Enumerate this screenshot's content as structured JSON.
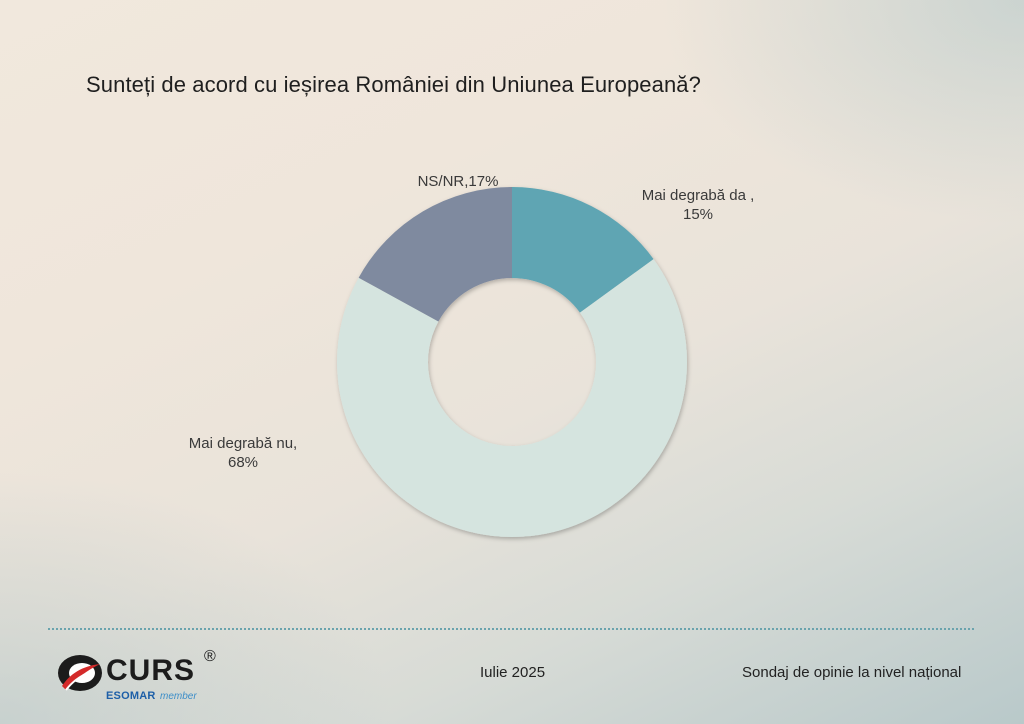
{
  "title": "Sunteți de acord cu ieșirea României din Uniunea Europeană?",
  "chart_data": {
    "type": "pie",
    "variant": "donut",
    "title": "Sunteți de acord cu ieșirea României din Uniunea Europeană?",
    "slices": [
      {
        "label_line1": "Mai degrabă da ,",
        "label_line2": "15%",
        "value": 15,
        "color": "#5fa5b3"
      },
      {
        "label_line1": "Mai degrabă nu,",
        "label_line2": "68%",
        "value": 68,
        "color": "#d5e4df"
      },
      {
        "label_line1": "NS/NR,17%",
        "label_line2": "",
        "value": 17,
        "color": "#7f8a9f"
      }
    ]
  },
  "footer": {
    "date": "Iulie 2025",
    "survey": "Sondaj de opinie la nivel național"
  },
  "logo": {
    "brand": "CURS",
    "registered": "®",
    "esomar": "ESOMAR",
    "member": "member",
    "accent": "#d42a2a"
  }
}
